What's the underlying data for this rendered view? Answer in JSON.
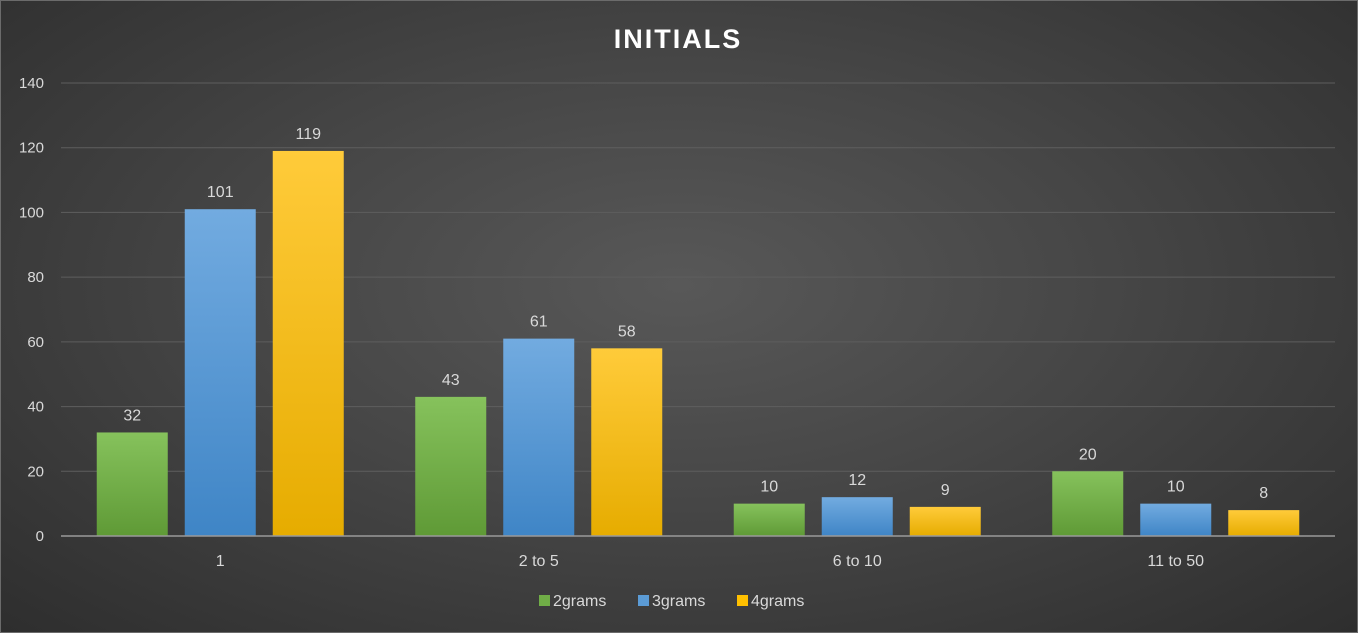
{
  "chart_data": {
    "type": "bar",
    "title": "INITIALS",
    "xlabel": "",
    "ylabel": "",
    "categories": [
      "1",
      "2 to 5",
      "6 to 10",
      "11 to 50"
    ],
    "series": [
      {
        "name": "2grams",
        "values": [
          32,
          43,
          10,
          20
        ],
        "color": "#70ad47",
        "color_light": "#86c25c",
        "color_dark": "#5f9a36"
      },
      {
        "name": "3grams",
        "values": [
          101,
          61,
          12,
          10
        ],
        "color": "#5b9bd5",
        "color_light": "#72abe0",
        "color_dark": "#3f85c6"
      },
      {
        "name": "4grams",
        "values": [
          119,
          58,
          9,
          8
        ],
        "color": "#ffc000",
        "color_light": "#ffcb3a",
        "color_dark": "#e6ac00"
      }
    ],
    "ylim": [
      0,
      140
    ],
    "yticks": [
      "0",
      "20",
      "40",
      "60",
      "80",
      "100",
      "120",
      "140"
    ],
    "grid": true,
    "legend_position": "bottom",
    "data_labels": true
  }
}
